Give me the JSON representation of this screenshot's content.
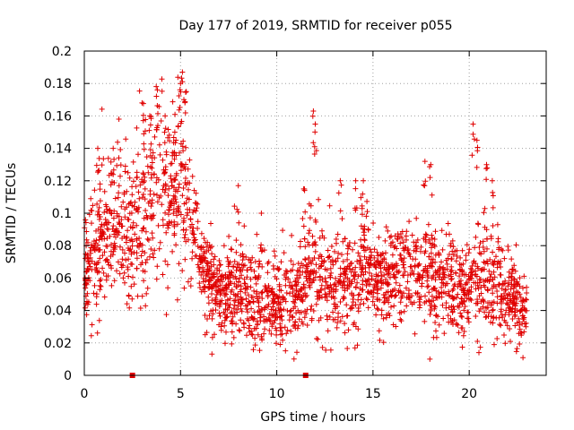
{
  "chart_data": {
    "type": "scatter",
    "title": "Day 177 of 2019, SRMTID for receiver p055",
    "xlabel": "GPS time / hours",
    "ylabel": "SRMTID / TECUs",
    "xlim": [
      0,
      24
    ],
    "ylim": [
      0,
      0.2
    ],
    "x_ticks": [
      0,
      5,
      10,
      15,
      20
    ],
    "x_tick_labels": [
      "0",
      "5",
      "10",
      "15",
      "20"
    ],
    "y_ticks": [
      0,
      0.02,
      0.04,
      0.06,
      0.08,
      0.1,
      0.12,
      0.14,
      0.16,
      0.18,
      0.2
    ],
    "y_tick_labels": [
      "0",
      "0.02",
      "0.04",
      "0.06",
      "0.08",
      "0.1",
      "0.12",
      "0.14",
      "0.16",
      "0.18",
      "0.2"
    ],
    "grid": true,
    "marker": "+",
    "color": "#e00000",
    "baseline_markers_x": [
      2.5,
      11.5
    ],
    "trend": [
      [
        0.0,
        0.07,
        0.014
      ],
      [
        0.3,
        0.06,
        0.018
      ],
      [
        0.6,
        0.08,
        0.022
      ],
      [
        1.0,
        0.085,
        0.02
      ],
      [
        1.5,
        0.09,
        0.022
      ],
      [
        2.0,
        0.09,
        0.022
      ],
      [
        2.5,
        0.085,
        0.024
      ],
      [
        3.0,
        0.1,
        0.026
      ],
      [
        3.5,
        0.105,
        0.028
      ],
      [
        4.0,
        0.115,
        0.028
      ],
      [
        4.5,
        0.11,
        0.026
      ],
      [
        5.0,
        0.12,
        0.028
      ],
      [
        5.5,
        0.1,
        0.022
      ],
      [
        6.0,
        0.07,
        0.016
      ],
      [
        6.5,
        0.06,
        0.014
      ],
      [
        7.0,
        0.05,
        0.014
      ],
      [
        7.5,
        0.05,
        0.016
      ],
      [
        8.0,
        0.055,
        0.016
      ],
      [
        8.5,
        0.05,
        0.014
      ],
      [
        9.0,
        0.045,
        0.014
      ],
      [
        9.5,
        0.048,
        0.015
      ],
      [
        10.0,
        0.045,
        0.014
      ],
      [
        10.5,
        0.05,
        0.014
      ],
      [
        11.0,
        0.045,
        0.013
      ],
      [
        11.5,
        0.065,
        0.02
      ],
      [
        12.0,
        0.065,
        0.02
      ],
      [
        12.5,
        0.06,
        0.016
      ],
      [
        13.0,
        0.055,
        0.016
      ],
      [
        13.5,
        0.06,
        0.016
      ],
      [
        14.0,
        0.05,
        0.014
      ],
      [
        14.5,
        0.07,
        0.02
      ],
      [
        15.0,
        0.06,
        0.014
      ],
      [
        15.5,
        0.06,
        0.013
      ],
      [
        16.0,
        0.06,
        0.013
      ],
      [
        16.5,
        0.065,
        0.016
      ],
      [
        17.0,
        0.06,
        0.014
      ],
      [
        17.5,
        0.065,
        0.02
      ],
      [
        18.0,
        0.06,
        0.018
      ],
      [
        18.5,
        0.06,
        0.016
      ],
      [
        19.0,
        0.055,
        0.014
      ],
      [
        19.5,
        0.05,
        0.014
      ],
      [
        20.0,
        0.055,
        0.016
      ],
      [
        20.5,
        0.065,
        0.02
      ],
      [
        21.0,
        0.06,
        0.018
      ],
      [
        21.5,
        0.055,
        0.016
      ],
      [
        22.0,
        0.05,
        0.014
      ],
      [
        22.5,
        0.045,
        0.014
      ],
      [
        23.0,
        0.045,
        0.012
      ]
    ],
    "peaks": [
      [
        0.1,
        0.08
      ],
      [
        0.7,
        0.14
      ],
      [
        1.5,
        0.14
      ],
      [
        1.8,
        0.158
      ],
      [
        3.0,
        0.168
      ],
      [
        3.4,
        0.16
      ],
      [
        3.8,
        0.176
      ],
      [
        4.2,
        0.16
      ],
      [
        4.7,
        0.15
      ],
      [
        5.0,
        0.18
      ],
      [
        5.1,
        0.187
      ],
      [
        5.3,
        0.175
      ],
      [
        8.0,
        0.117
      ],
      [
        9.2,
        0.1
      ],
      [
        11.4,
        0.115
      ],
      [
        11.9,
        0.163
      ],
      [
        12.0,
        0.155
      ],
      [
        13.3,
        0.12
      ],
      [
        14.1,
        0.12
      ],
      [
        14.5,
        0.12
      ],
      [
        17.7,
        0.132
      ],
      [
        18.0,
        0.13
      ],
      [
        20.2,
        0.155
      ],
      [
        20.4,
        0.145
      ],
      [
        20.9,
        0.13
      ],
      [
        21.2,
        0.12
      ]
    ],
    "n_points": 2400,
    "seed": 177
  }
}
